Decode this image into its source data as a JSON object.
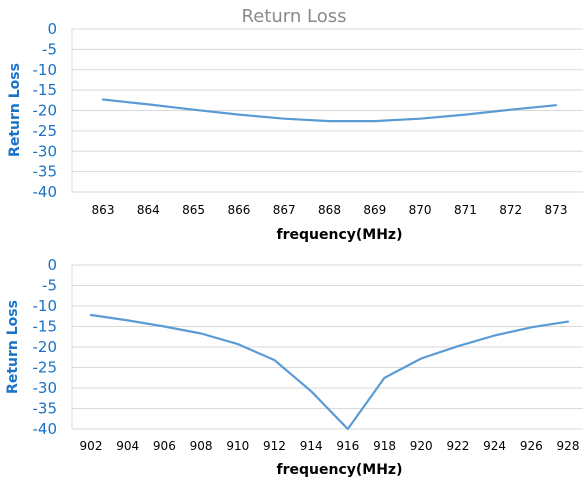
{
  "chart_data": [
    {
      "type": "line",
      "title": "Return Loss",
      "xlabel": "frequency(MHz)",
      "ylabel": "Return Loss",
      "x": [
        863,
        864,
        865,
        866,
        867,
        868,
        869,
        870,
        871,
        872,
        873
      ],
      "series": [
        {
          "values": [
            -17.3,
            -18.5,
            -19.8,
            -21.0,
            -22.0,
            -22.6,
            -22.6,
            -22.0,
            -21.0,
            -19.8,
            -18.7
          ]
        }
      ],
      "ylim": [
        -40,
        0
      ],
      "yticks": [
        0,
        -5,
        -10,
        -15,
        -20,
        -25,
        -30,
        -35,
        -40
      ],
      "grid": true,
      "line_color": "#5b9bd5"
    },
    {
      "type": "line",
      "title": "",
      "xlabel": "frequency(MHz)",
      "ylabel": "Return Loss",
      "x": [
        902,
        904,
        906,
        908,
        910,
        912,
        914,
        916,
        918,
        920,
        922,
        924,
        926,
        928
      ],
      "series": [
        {
          "values": [
            -12.2,
            -13.5,
            -15.0,
            -16.7,
            -19.3,
            -23.2,
            -30.8,
            -40.0,
            -27.5,
            -22.8,
            -19.8,
            -17.2,
            -15.2,
            -13.8
          ]
        }
      ],
      "ylim": [
        -40,
        0
      ],
      "yticks": [
        0,
        -5,
        -10,
        -15,
        -20,
        -25,
        -30,
        -35,
        -40
      ],
      "grid": true,
      "line_color": "#5b9bd5"
    }
  ]
}
